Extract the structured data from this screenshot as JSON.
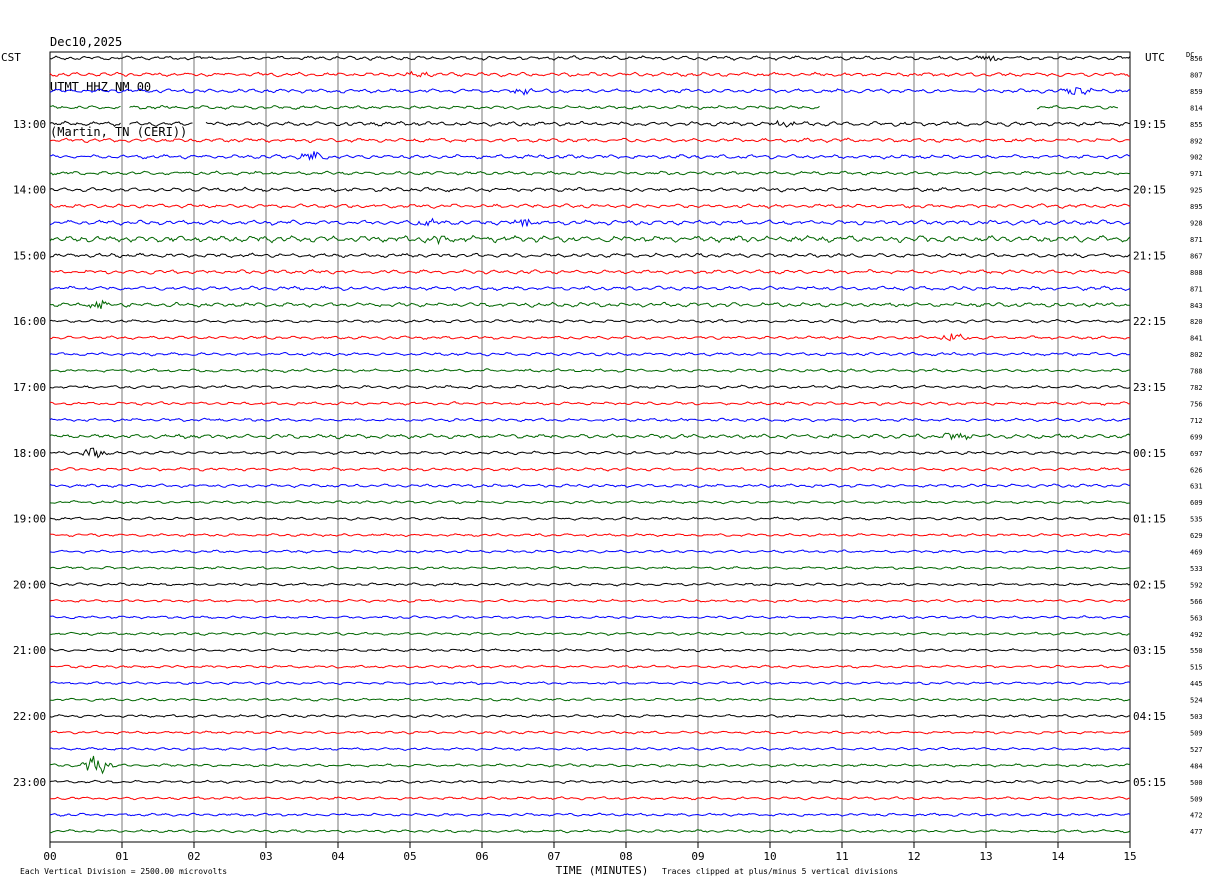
{
  "header": {
    "date": "Dec10,2025",
    "station": "UTMT HHZ NM 00",
    "location": "(Martin, TN (CERI))"
  },
  "axes": {
    "left_zone": "CST",
    "right_zone": "UTC",
    "dc_label": "DC",
    "xlabel": "TIME (MINUTES)"
  },
  "footer": {
    "scale_note": "Each Vertical Division = 2500.00 microvolts",
    "clip_note": "Traces clipped at plus/minus 5 vertical divisions"
  },
  "chart_data": {
    "type": "line",
    "description_of_x": "minutes within each 15-minute row",
    "xlim": [
      0,
      15
    ],
    "x_ticks": [
      "00",
      "01",
      "02",
      "03",
      "04",
      "05",
      "06",
      "07",
      "08",
      "09",
      "10",
      "11",
      "12",
      "13",
      "14",
      "15"
    ],
    "minutes_per_row": 15,
    "trace_colors": [
      "#000000",
      "#ff0000",
      "#0000ff",
      "#006600"
    ],
    "left_time_labels": [
      "13:00",
      "14:00",
      "15:00",
      "16:00",
      "17:00",
      "18:00",
      "19:00",
      "20:00",
      "21:00",
      "22:00",
      "23:00"
    ],
    "right_time_labels": [
      "19:15",
      "20:15",
      "21:15",
      "22:15",
      "23:15",
      "00:15",
      "01:15",
      "02:15",
      "03:15",
      "04:15",
      "05:15"
    ],
    "first_labeled_row": 4,
    "dc_offsets": [
      856,
      807,
      859,
      814,
      855,
      892,
      902,
      971,
      925,
      895,
      928,
      871,
      867,
      808,
      871,
      843,
      820,
      841,
      802,
      788,
      782,
      756,
      712,
      699,
      697,
      626,
      631,
      609,
      535,
      629,
      469,
      533,
      592,
      566,
      563,
      492,
      550,
      515,
      445,
      524,
      503,
      509,
      527,
      484,
      500,
      509,
      472,
      477
    ],
    "noise_levels": [
      1.0,
      1.0,
      1.0,
      0.9,
      1.1,
      1.0,
      1.0,
      0.9,
      1.0,
      1.0,
      1.2,
      1.6,
      1.0,
      1.0,
      1.0,
      1.1,
      0.8,
      0.8,
      0.8,
      0.8,
      0.8,
      0.8,
      0.8,
      1.1,
      0.8,
      0.8,
      0.8,
      0.7,
      0.7,
      0.7,
      0.7,
      0.7,
      0.7,
      0.7,
      0.7,
      0.7,
      0.7,
      0.7,
      0.7,
      0.7,
      0.7,
      0.7,
      0.7,
      0.7,
      0.7,
      0.7,
      0.7,
      0.7
    ],
    "events": [
      {
        "row": 0,
        "minute": 13.05,
        "amplitude": 3
      },
      {
        "row": 1,
        "minute": 5.1,
        "amplitude": 3
      },
      {
        "row": 2,
        "minute": 6.55,
        "amplitude": 3
      },
      {
        "row": 2,
        "minute": 14.3,
        "amplitude": 5
      },
      {
        "row": 4,
        "minute": 10.2,
        "amplitude": 3
      },
      {
        "row": 6,
        "minute": 3.65,
        "amplitude": 5
      },
      {
        "row": 10,
        "minute": 5.2,
        "amplitude": 4
      },
      {
        "row": 10,
        "minute": 6.6,
        "amplitude": 4
      },
      {
        "row": 11,
        "minute": 5.4,
        "amplitude": 3
      },
      {
        "row": 15,
        "minute": 0.65,
        "amplitude": 4
      },
      {
        "row": 17,
        "minute": 12.55,
        "amplitude": 5
      },
      {
        "row": 23,
        "minute": 12.6,
        "amplitude": 4
      },
      {
        "row": 24,
        "minute": 0.6,
        "amplitude": 5
      },
      {
        "row": 43,
        "minute": 0.65,
        "amplitude": 10
      }
    ],
    "gaps": [
      {
        "row": 3,
        "from": 1.0,
        "to": 1.1
      },
      {
        "row": 3,
        "from": 10.7,
        "to": 13.7
      },
      {
        "row": 3,
        "from": 14.85,
        "to": 15.0
      },
      {
        "row": 4,
        "from": 1.0,
        "to": 1.1
      },
      {
        "row": 4,
        "from": 2.0,
        "to": 2.15
      }
    ]
  }
}
